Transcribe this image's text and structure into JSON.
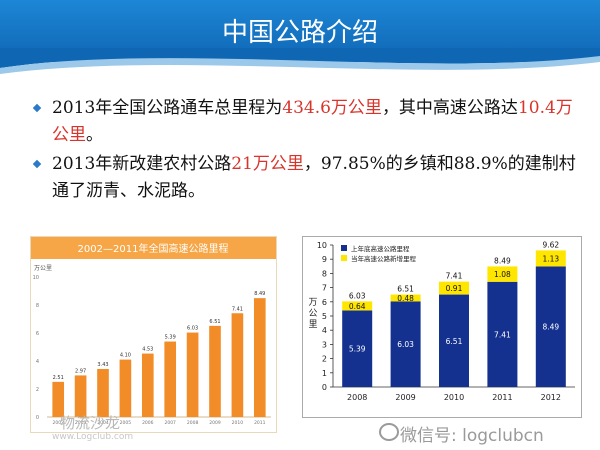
{
  "slide": {
    "title": "中国公路介绍"
  },
  "bullets": [
    {
      "parts": [
        {
          "text": "2013年全国公路通车总里程为",
          "hl": false
        },
        {
          "text": "434.6万公里",
          "hl": true
        },
        {
          "text": "，其中高速公路达",
          "hl": false
        },
        {
          "text": "10.4万公里",
          "hl": true
        },
        {
          "text": "。",
          "hl": false
        }
      ]
    },
    {
      "parts": [
        {
          "text": "2013年新改建农村公路",
          "hl": false
        },
        {
          "text": "21万公里",
          "hl": true
        },
        {
          "text": "，97.85%的乡镇和88.9%的建制村通了沥青、水泥路。",
          "hl": false
        }
      ]
    }
  ],
  "colors": {
    "header": "#1577c6",
    "highlight": "#d9342b",
    "bar_orange": "#f28c28",
    "bar_navy": "#15318f",
    "bar_yellow": "#ffe600"
  },
  "chart_data": [
    {
      "type": "bar",
      "title": "2002—2011年全国高速公路里程",
      "ylabel": "万公里",
      "categories": [
        "2002",
        "2003",
        "2004",
        "2005",
        "2006",
        "2007",
        "2008",
        "2009",
        "2010",
        "2011"
      ],
      "values": [
        2.51,
        2.97,
        3.43,
        4.1,
        4.53,
        5.39,
        6.03,
        6.51,
        7.41,
        8.49
      ],
      "ylim": [
        0,
        10
      ],
      "yticks": [
        "10",
        "8",
        "6",
        "4",
        "2",
        "0"
      ]
    },
    {
      "type": "bar",
      "stacked": true,
      "ylabel": "万公里",
      "categories": [
        "2008",
        "2009",
        "2010",
        "2011",
        "2012"
      ],
      "series": [
        {
          "name": "上年底高速公路里程",
          "values": [
            5.39,
            6.03,
            6.51,
            7.41,
            8.49
          ]
        },
        {
          "name": "当年高速公路新增里程",
          "values": [
            0.64,
            0.48,
            0.91,
            1.08,
            1.13
          ]
        }
      ],
      "totals": [
        6.03,
        6.51,
        7.41,
        8.49,
        9.62
      ],
      "ylim": [
        0,
        10
      ],
      "yticks": [
        "10",
        "9",
        "8",
        "7",
        "6",
        "5",
        "4",
        "3",
        "2",
        "1",
        "0"
      ],
      "legend": "top-left",
      "grid": false
    }
  ],
  "watermarks": {
    "logo_text": "物流沙龙",
    "url": "www.Logclub.com",
    "wechat": "微信号: logclubcn"
  }
}
